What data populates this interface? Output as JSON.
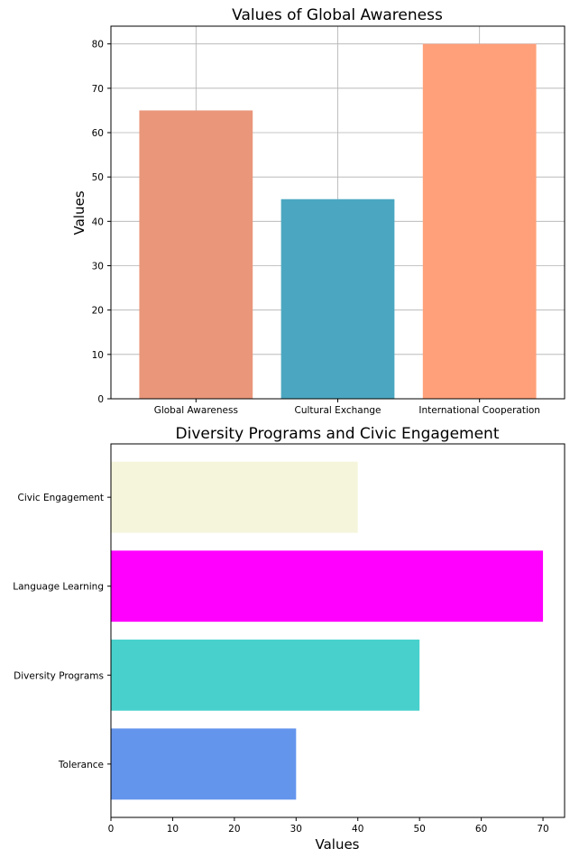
{
  "chart_data": [
    {
      "type": "bar",
      "title": "Values of Global Awareness",
      "xlabel": "",
      "ylabel": "Values",
      "categories": [
        "Global Awareness",
        "Cultural Exchange",
        "International Cooperation"
      ],
      "values": [
        65,
        45,
        80
      ],
      "colors": [
        "#E9967A",
        "#4BA7C1",
        "#FFA07A"
      ],
      "ylim": [
        0,
        84
      ],
      "yticks": [
        0,
        10,
        20,
        30,
        40,
        50,
        60,
        70,
        80
      ],
      "grid": true
    },
    {
      "type": "barh",
      "title": "Diversity Programs and Civic Engagement",
      "xlabel": "Values",
      "ylabel": "",
      "categories": [
        "Tolerance",
        "Diversity Programs",
        "Language Learning",
        "Civic Engagement"
      ],
      "values": [
        30,
        50,
        70,
        40
      ],
      "colors": [
        "#6495ED",
        "#48D1CC",
        "#FF00FF",
        "#F5F5DC"
      ],
      "xlim": [
        0,
        73.5
      ],
      "xticks": [
        0,
        10,
        20,
        30,
        40,
        50,
        60,
        70
      ],
      "grid": false
    }
  ]
}
